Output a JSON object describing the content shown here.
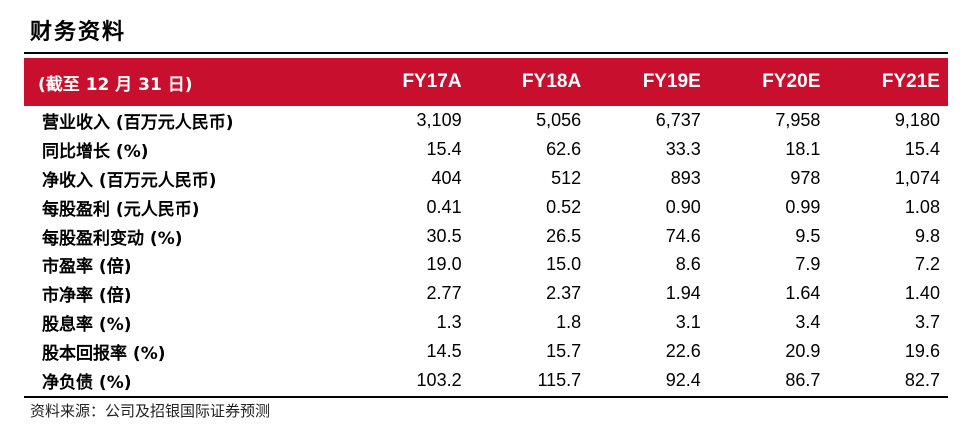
{
  "title": "财务资料",
  "header": {
    "label": "(截至 12 月 31 日)",
    "years": [
      "FY17A",
      "FY18A",
      "FY19E",
      "FY20E",
      "FY21E"
    ]
  },
  "rows": [
    {
      "label": "营业收入 (百万元人民币)",
      "values": [
        "3,109",
        "5,056",
        "6,737",
        "7,958",
        "9,180"
      ]
    },
    {
      "label": "同比增长 (%)",
      "values": [
        "15.4",
        "62.6",
        "33.3",
        "18.1",
        "15.4"
      ]
    },
    {
      "label": "净收入 (百万元人民币)",
      "values": [
        "404",
        "512",
        "893",
        "978",
        "1,074"
      ]
    },
    {
      "label": "每股盈利 (元人民币)",
      "values": [
        "0.41",
        "0.52",
        "0.90",
        "0.99",
        "1.08"
      ]
    },
    {
      "label": "每股盈利变动 (%)",
      "values": [
        "30.5",
        "26.5",
        "74.6",
        "9.5",
        "9.8"
      ]
    },
    {
      "label": "市盈率 (倍)",
      "values": [
        "19.0",
        "15.0",
        "8.6",
        "7.9",
        "7.2"
      ]
    },
    {
      "label": "市净率 (倍)",
      "values": [
        "2.77",
        "2.37",
        "1.94",
        "1.64",
        "1.40"
      ]
    },
    {
      "label": "股息率 (%)",
      "values": [
        "1.3",
        "1.8",
        "3.1",
        "3.4",
        "3.7"
      ]
    },
    {
      "label": "股本回报率 (%)",
      "values": [
        "14.5",
        "15.7",
        "22.6",
        "20.9",
        "19.6"
      ]
    },
    {
      "label": "净负债 (%)",
      "values": [
        "103.2",
        "115.7",
        "92.4",
        "86.7",
        "82.7"
      ]
    }
  ],
  "source": "资料来源：公司及招银国际证券预测",
  "colors": {
    "header_bg": "#c8102e",
    "header_text": "#ffffff"
  }
}
